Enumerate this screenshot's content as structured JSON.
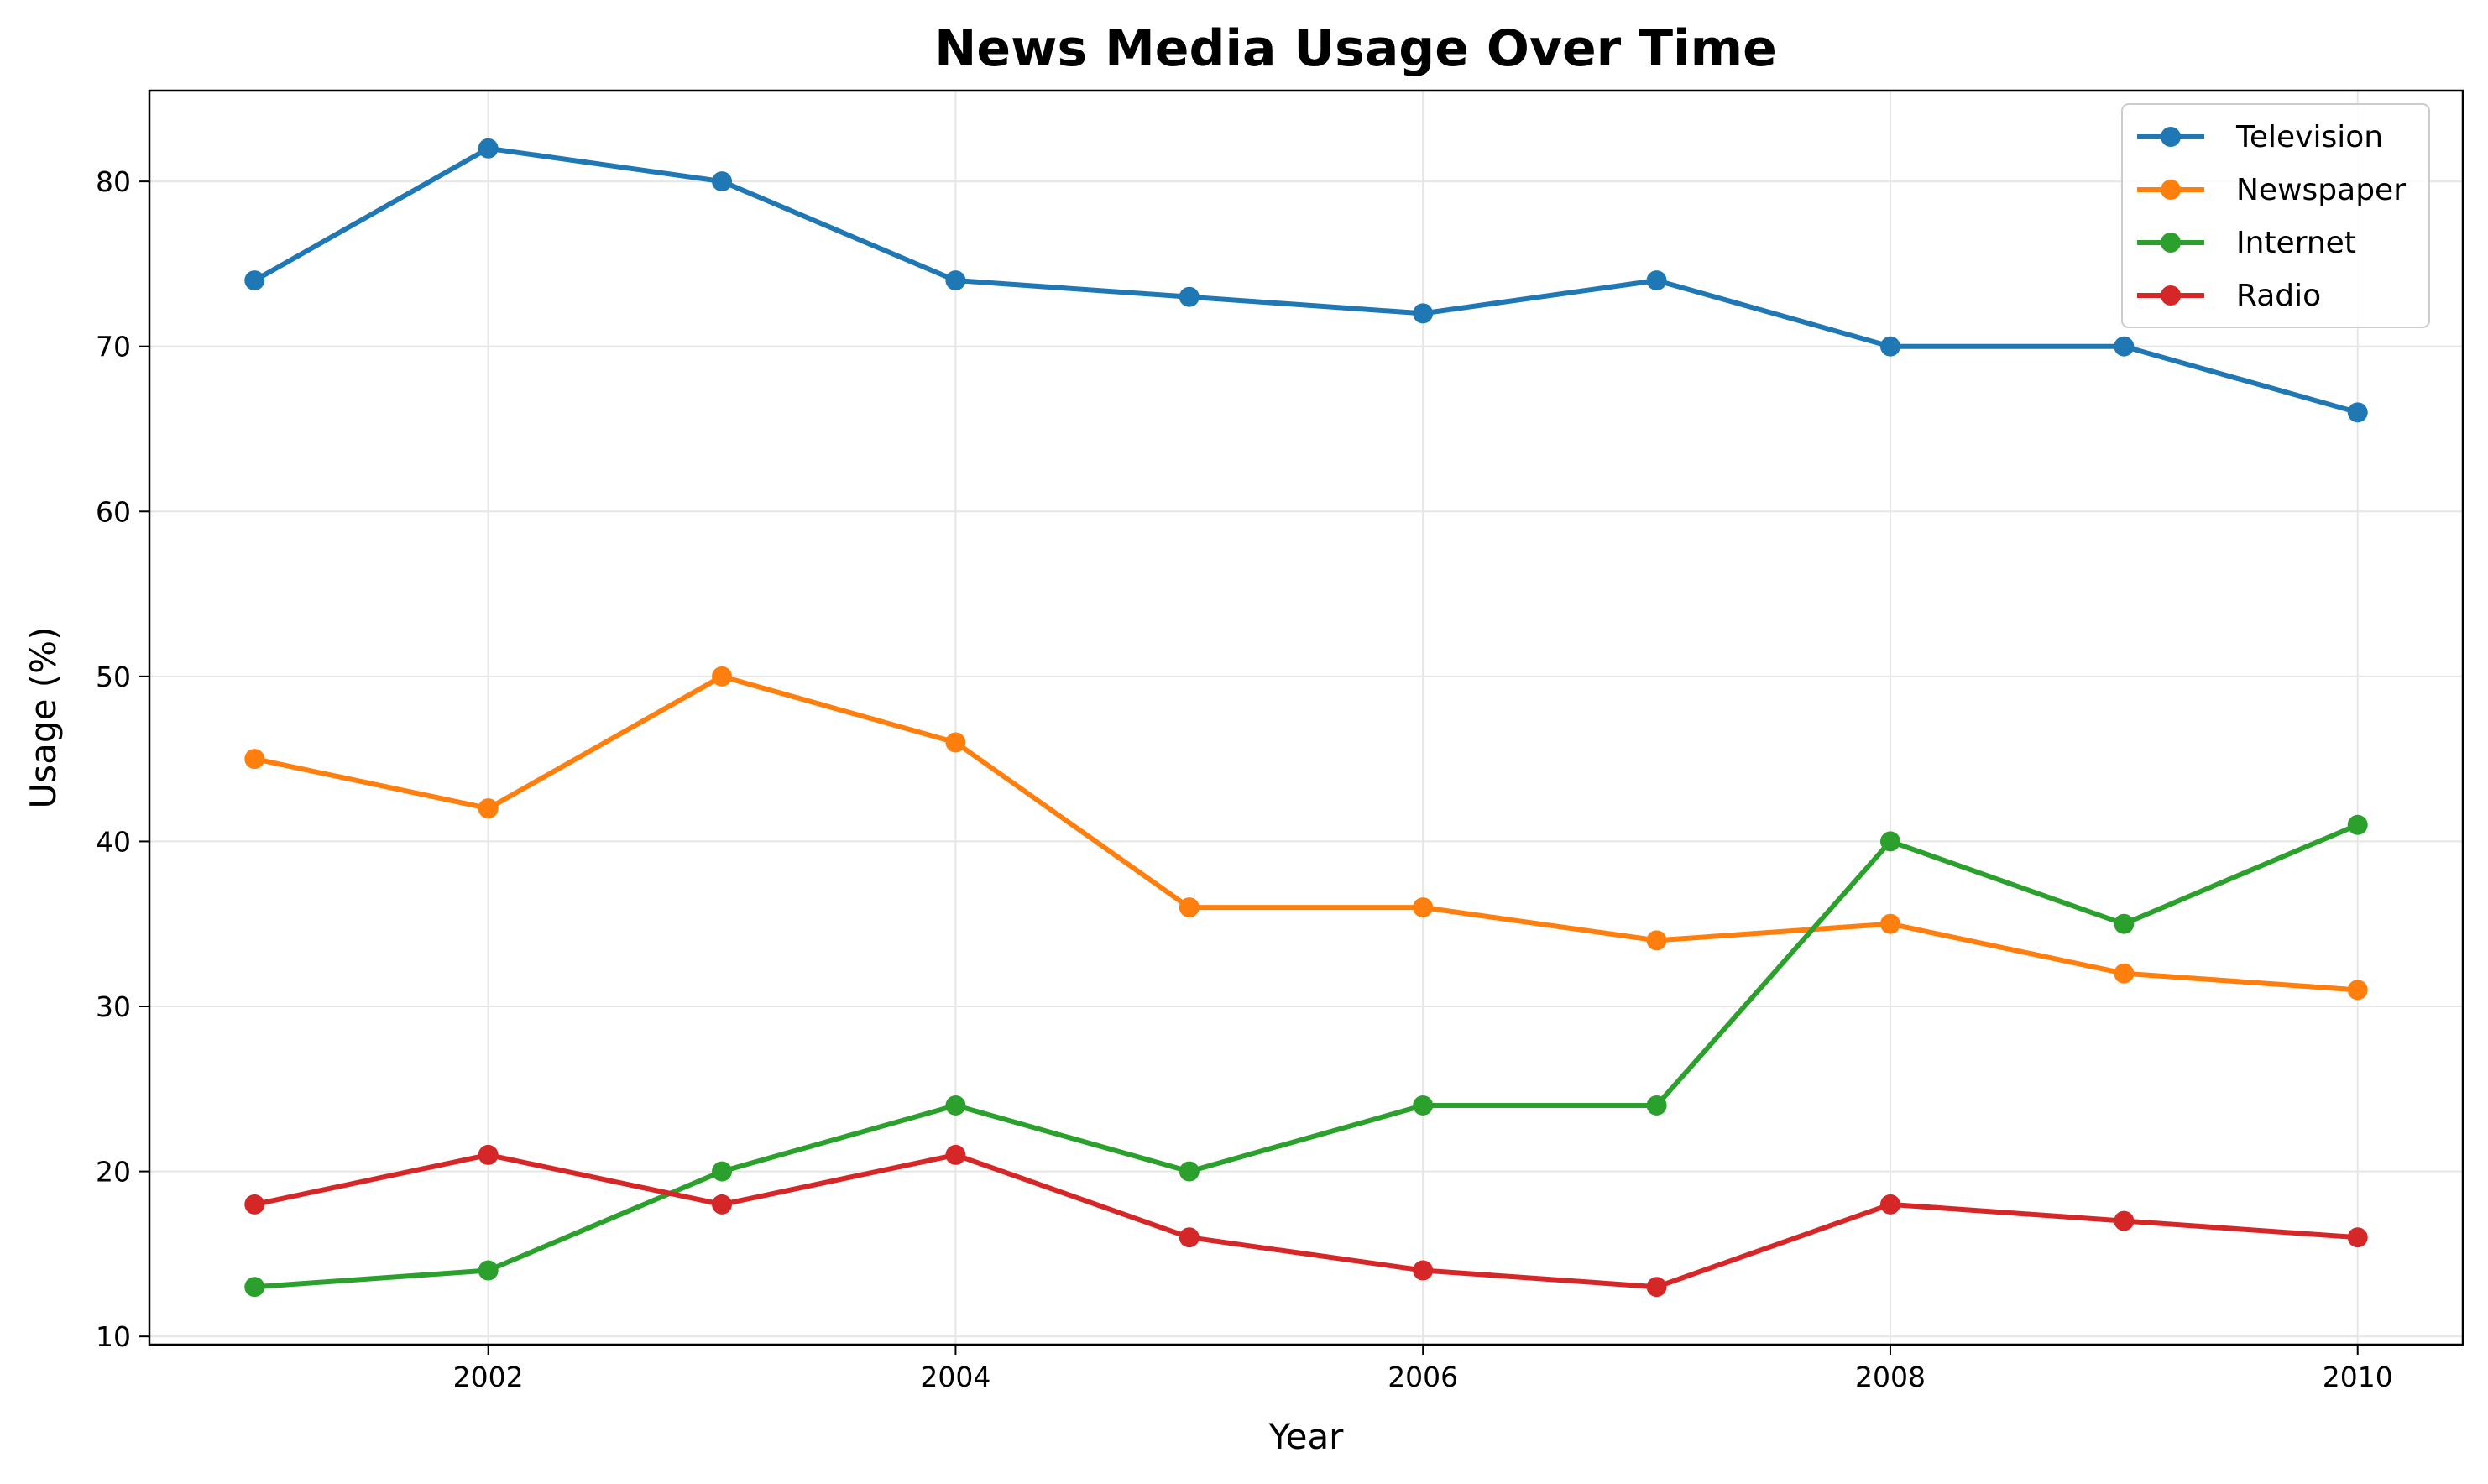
{
  "chart_data": {
    "type": "line",
    "title": "News Media Usage Over Time",
    "xlabel": "Year",
    "ylabel": "Usage (%)",
    "x": [
      2001,
      2002,
      2003,
      2004,
      2005,
      2006,
      2007,
      2008,
      2009,
      2010
    ],
    "xlim": [
      2000.55,
      2010.45
    ],
    "ylim": [
      9.5,
      85.5
    ],
    "xticks": [
      2002,
      2004,
      2006,
      2008,
      2010
    ],
    "yticks": [
      10,
      20,
      30,
      40,
      50,
      60,
      70,
      80
    ],
    "grid": true,
    "legend_position": "top-right",
    "series": [
      {
        "name": "Television",
        "color": "#1f77b4",
        "values": [
          74,
          82,
          80,
          74,
          73,
          72,
          74,
          70,
          70,
          66
        ]
      },
      {
        "name": "Newspaper",
        "color": "#ff7f0e",
        "values": [
          45,
          42,
          50,
          46,
          36,
          36,
          34,
          35,
          32,
          31
        ]
      },
      {
        "name": "Internet",
        "color": "#2ca02c",
        "values": [
          13,
          14,
          20,
          24,
          20,
          24,
          24,
          40,
          35,
          41
        ]
      },
      {
        "name": "Radio",
        "color": "#d62728",
        "values": [
          18,
          21,
          18,
          21,
          16,
          14,
          13,
          18,
          17,
          16
        ]
      }
    ]
  }
}
